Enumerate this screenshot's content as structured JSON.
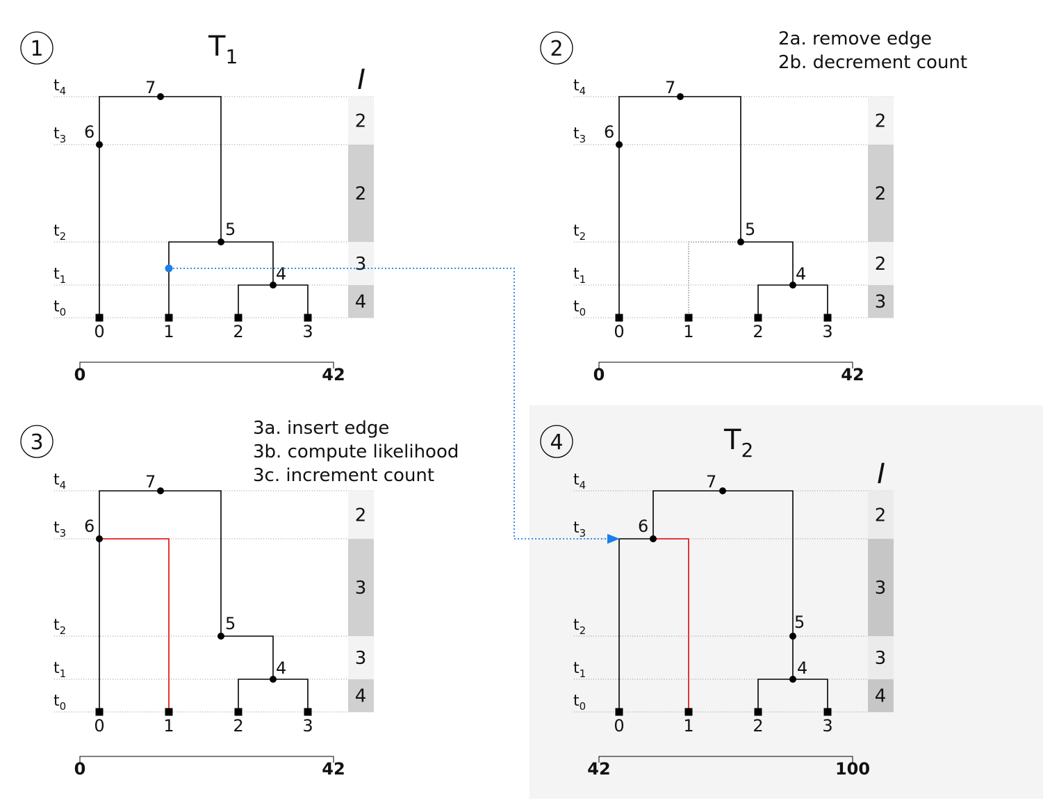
{
  "panels": [
    {
      "id": "1",
      "title_base": "T",
      "title_sub": "1",
      "interval_header": "I",
      "steps": [],
      "interval_counts": [
        "2",
        "2",
        "3",
        "4"
      ],
      "interval_shades": [
        "#f3f3f3",
        "#d0d0d0",
        "#f3f3f3",
        "#d0d0d0"
      ],
      "axis": {
        "start": "0",
        "end": "42"
      }
    },
    {
      "id": "2",
      "title_base": "",
      "title_sub": "",
      "interval_header": "",
      "steps": [
        "2a. remove edge",
        "2b. decrement count"
      ],
      "interval_counts": [
        "2",
        "2",
        "2",
        "3"
      ],
      "interval_shades": [
        "#f3f3f3",
        "#d0d0d0",
        "#f3f3f3",
        "#d0d0d0"
      ],
      "axis": {
        "start": "0",
        "end": "42"
      }
    },
    {
      "id": "3",
      "title_base": "",
      "title_sub": "",
      "interval_header": "",
      "steps": [
        "3a. insert edge",
        "3b. compute likelihood",
        "3c. increment count"
      ],
      "interval_counts": [
        "2",
        "3",
        "3",
        "4"
      ],
      "interval_shades": [
        "#f3f3f3",
        "#d0d0d0",
        "#f3f3f3",
        "#d0d0d0"
      ],
      "axis": {
        "start": "0",
        "end": "42"
      }
    },
    {
      "id": "4",
      "title_base": "T",
      "title_sub": "2",
      "interval_header": "I",
      "steps": [],
      "interval_counts": [
        "2",
        "3",
        "3",
        "4"
      ],
      "interval_shades": [
        "#ebebeb",
        "#c6c6c6",
        "#ebebeb",
        "#c6c6c6"
      ],
      "axis": {
        "start": "42",
        "end": "100"
      }
    }
  ],
  "time_labels": [
    {
      "base": "t",
      "sub": "4"
    },
    {
      "base": "t",
      "sub": "3"
    },
    {
      "base": "t",
      "sub": "2"
    },
    {
      "base": "t",
      "sub": "1"
    },
    {
      "base": "t",
      "sub": "0"
    }
  ],
  "leaf_labels": [
    "0",
    "1",
    "2",
    "3"
  ],
  "node_labels": {
    "n4": "4",
    "n5": "5",
    "n6": "6",
    "n7": "7"
  },
  "colors": {
    "highlight_panel_bg": "#f4f4f4",
    "moved_edge": "#e02020",
    "move_arrow": "#1a7fe8"
  }
}
